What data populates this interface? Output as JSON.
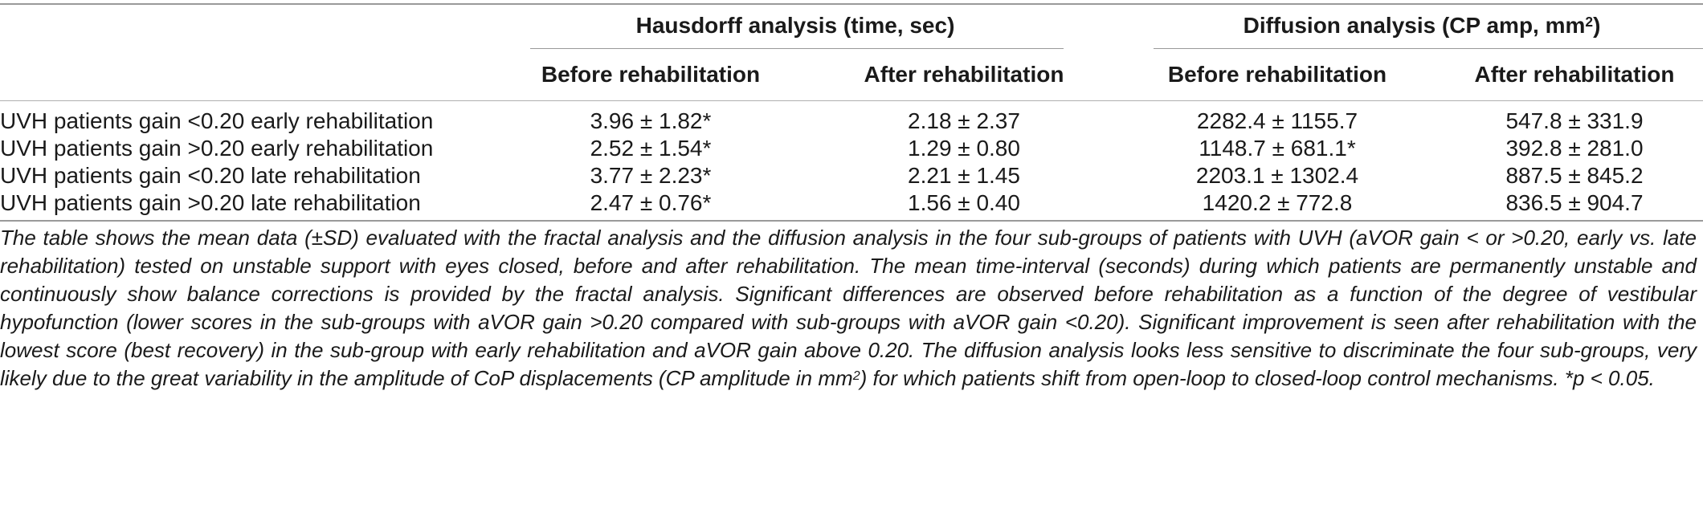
{
  "table": {
    "groups": [
      {
        "label": "Hausdorff analysis (time, sec)",
        "sup": ""
      },
      {
        "label": "Diffusion analysis (CP amp, mm",
        "sup": "2",
        "close": ")"
      }
    ],
    "subheaders": [
      "Before rehabilitation",
      "After rehabilitation",
      "Before rehabilitation",
      "After rehabilitation"
    ],
    "rows": [
      {
        "label": "UVH patients gain <0.20 early rehabilitation",
        "cells": [
          "3.96 ± 1.82*",
          "2.18 ± 2.37",
          "2282.4 ± 1155.7",
          "547.8 ± 331.9"
        ]
      },
      {
        "label": "UVH patients gain >0.20 early rehabilitation",
        "cells": [
          "2.52 ± 1.54*",
          "1.29 ± 0.80",
          "1148.7 ± 681.1*",
          "392.8 ± 281.0"
        ]
      },
      {
        "label": "UVH patients gain <0.20 late rehabilitation",
        "cells": [
          "3.77 ± 2.23*",
          "2.21 ± 1.45",
          "2203.1 ± 1302.4",
          "887.5 ± 845.2"
        ]
      },
      {
        "label": "UVH patients gain >0.20 late rehabilitation",
        "cells": [
          "2.47 ± 0.76*",
          "1.56 ± 0.40",
          "1420.2 ± 772.8",
          "836.5 ± 904.7"
        ]
      }
    ]
  },
  "caption": {
    "part1": "The table shows the mean data (±SD) evaluated with the fractal analysis and the diffusion analysis in the four sub-groups of patients with UVH (aVOR gain < or >0.20, early vs. late rehabilitation) tested on unstable support with eyes closed, before and after rehabilitation. The mean time-interval (seconds) during which patients are permanently unstable and continuously show balance corrections is provided by the fractal analysis. Significant differences are observed before rehabilitation as a function of the degree of vestibular hypofunction (lower scores in the sub-groups with aVOR gain >0.20 compared with sub-groups with aVOR gain <0.20). Significant improvement is seen after rehabilitation with the lowest score (best recovery) in the sub-group with early rehabilitation and aVOR gain above 0.20. The diffusion analysis looks less sensitive to discriminate the four sub-groups, very likely due to the great variability in the amplitude of CoP displacements (CP amplitude in mm",
    "sup": "2",
    "part2": ") for which patients shift from open-loop to closed-loop control mechanisms. *p < 0.05."
  }
}
